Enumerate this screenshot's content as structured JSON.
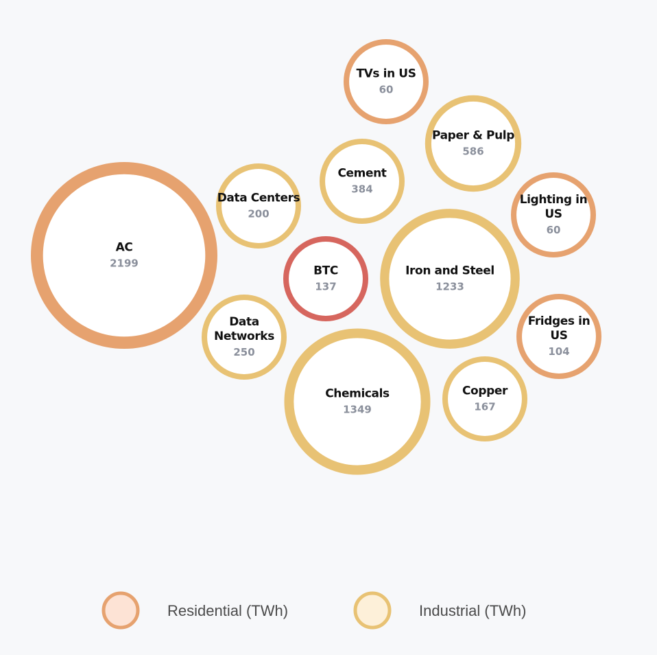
{
  "colors": {
    "background": "#f7f8fa",
    "bubble_fill": "#ffffff",
    "residential_stroke": "#e6a26f",
    "industrial_stroke": "#e8c274",
    "btc_stroke": "#d6665e",
    "residential_legend_fill": "#fde3d5",
    "industrial_legend_fill": "#fdf0d9"
  },
  "chart_data": {
    "type": "bubble",
    "unit": "TWh",
    "legend": {
      "placement": "bottom",
      "items": [
        {
          "label": "Residential (TWh)",
          "category": "residential"
        },
        {
          "label": "Industrial (TWh)",
          "category": "industrial"
        }
      ]
    },
    "bubbles": [
      {
        "id": "ac",
        "lines": [
          "AC"
        ],
        "value": 2199,
        "category": "residential"
      },
      {
        "id": "tvs-us",
        "lines": [
          "TVs in US"
        ],
        "value": 60,
        "category": "residential"
      },
      {
        "id": "paper-pulp",
        "lines": [
          "Paper & Pulp"
        ],
        "value": 586,
        "category": "industrial"
      },
      {
        "id": "cement",
        "lines": [
          "Cement"
        ],
        "value": 384,
        "category": "industrial"
      },
      {
        "id": "data-centers",
        "lines": [
          "Data Centers"
        ],
        "value": 200,
        "category": "industrial"
      },
      {
        "id": "lighting-us",
        "lines": [
          "Lighting in",
          "US"
        ],
        "value": 60,
        "category": "residential"
      },
      {
        "id": "btc",
        "lines": [
          "BTC"
        ],
        "value": 137,
        "category": "btc"
      },
      {
        "id": "iron-steel",
        "lines": [
          "Iron and Steel"
        ],
        "value": 1233,
        "category": "industrial"
      },
      {
        "id": "data-networks",
        "lines": [
          "Data",
          "Networks"
        ],
        "value": 250,
        "category": "industrial"
      },
      {
        "id": "fridges-us",
        "lines": [
          "Fridges in",
          "US"
        ],
        "value": 104,
        "category": "residential"
      },
      {
        "id": "chemicals",
        "lines": [
          "Chemicals"
        ],
        "value": 1349,
        "category": "industrial"
      },
      {
        "id": "copper",
        "lines": [
          "Copper"
        ],
        "value": 167,
        "category": "industrial"
      }
    ]
  }
}
